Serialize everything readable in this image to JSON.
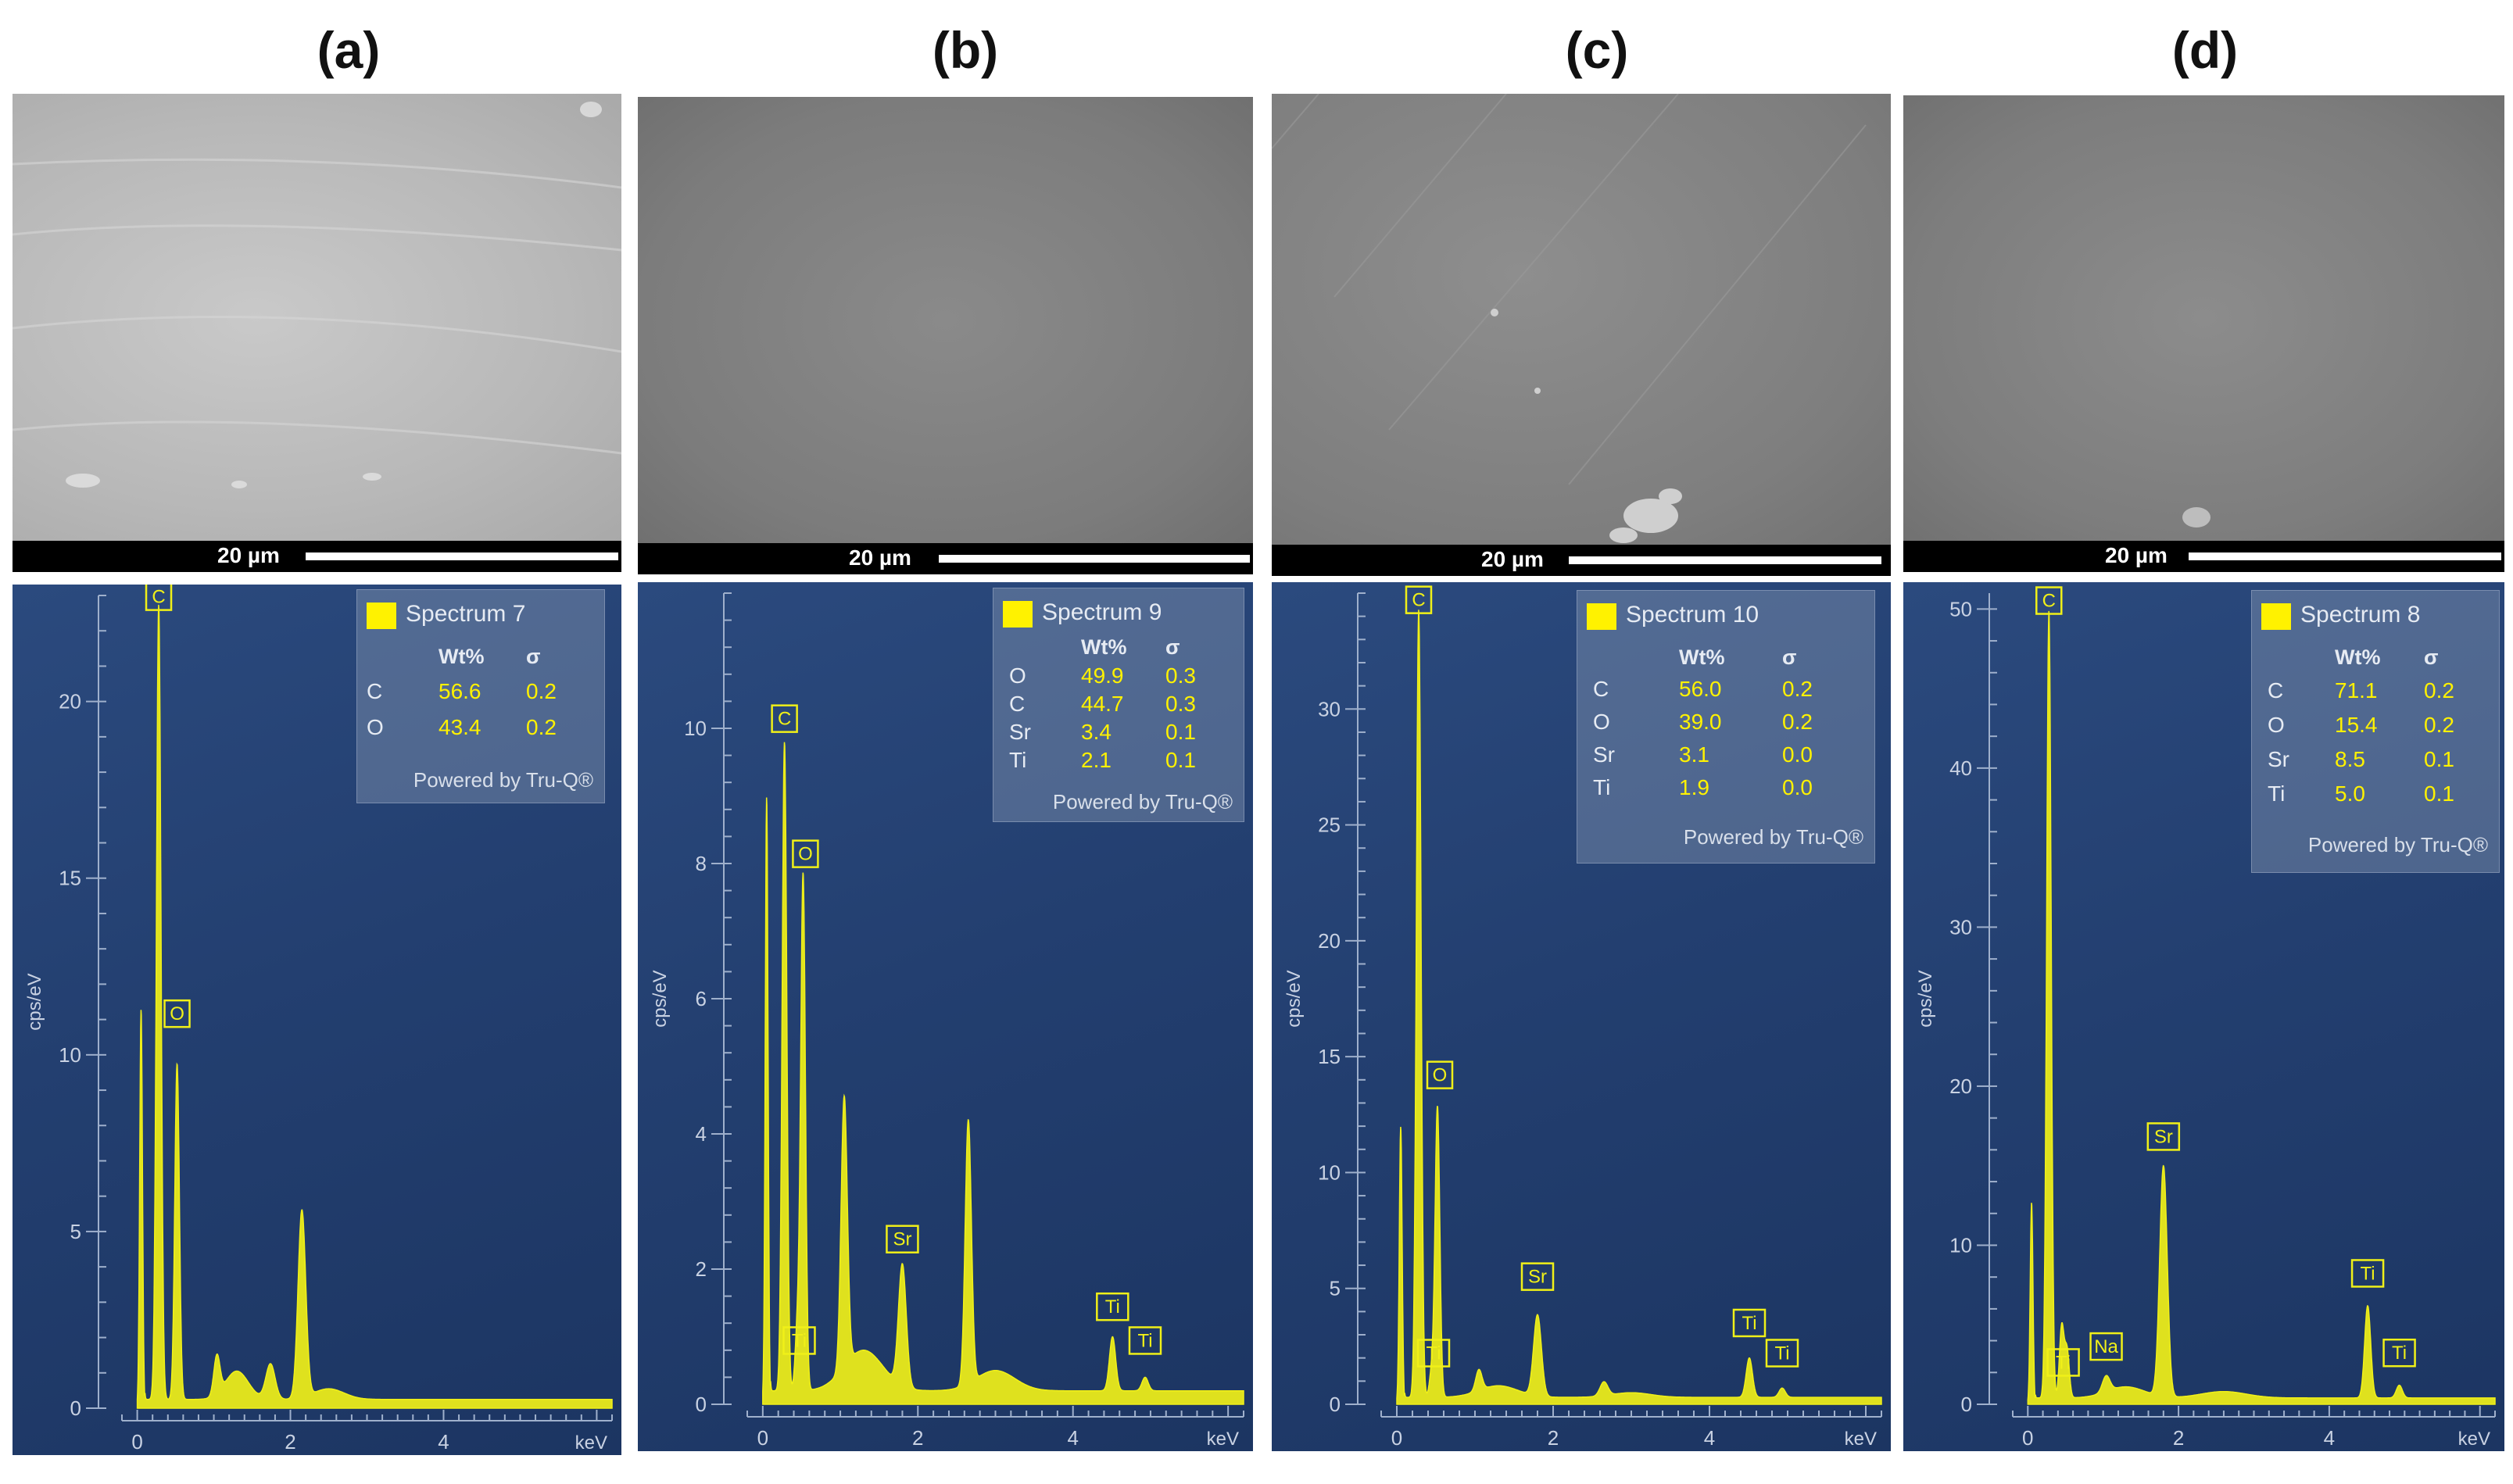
{
  "colors": {
    "spectrum": "#f0f018",
    "background": "#223d6e",
    "legend_swatch": "#fff200"
  },
  "panels": [
    {
      "letter": "(a)",
      "scale_bar": "20 µm",
      "legend": {
        "spectrum": "Spectrum 7",
        "col_wt": "Wt%",
        "col_sigma": "σ",
        "rows": [
          {
            "el": "C",
            "wt": "56.6",
            "sigma": "0.2"
          },
          {
            "el": "O",
            "wt": "43.4",
            "sigma": "0.2"
          }
        ],
        "powered": "Powered by Tru-Q®"
      }
    },
    {
      "letter": "(b)",
      "scale_bar": "20 µm",
      "legend": {
        "spectrum": "Spectrum 9",
        "col_wt": "Wt%",
        "col_sigma": "σ",
        "rows": [
          {
            "el": "O",
            "wt": "49.9",
            "sigma": "0.3"
          },
          {
            "el": "C",
            "wt": "44.7",
            "sigma": "0.3"
          },
          {
            "el": "Sr",
            "wt": "3.4",
            "sigma": "0.1"
          },
          {
            "el": "Ti",
            "wt": "2.1",
            "sigma": "0.1"
          }
        ],
        "powered": "Powered by Tru-Q®"
      }
    },
    {
      "letter": "(c)",
      "scale_bar": "20 µm",
      "legend": {
        "spectrum": "Spectrum 10",
        "col_wt": "Wt%",
        "col_sigma": "σ",
        "rows": [
          {
            "el": "C",
            "wt": "56.0",
            "sigma": "0.2"
          },
          {
            "el": "O",
            "wt": "39.0",
            "sigma": "0.2"
          },
          {
            "el": "Sr",
            "wt": "3.1",
            "sigma": "0.0"
          },
          {
            "el": "Ti",
            "wt": "1.9",
            "sigma": "0.0"
          }
        ],
        "powered": "Powered by Tru-Q®"
      }
    },
    {
      "letter": "(d)",
      "scale_bar": "20 µm",
      "legend": {
        "spectrum": "Spectrum 8",
        "col_wt": "Wt%",
        "col_sigma": "σ",
        "rows": [
          {
            "el": "C",
            "wt": "71.1",
            "sigma": "0.2"
          },
          {
            "el": "O",
            "wt": "15.4",
            "sigma": "0.2"
          },
          {
            "el": "Sr",
            "wt": "8.5",
            "sigma": "0.1"
          },
          {
            "el": "Ti",
            "wt": "5.0",
            "sigma": "0.1"
          }
        ],
        "powered": "Powered by Tru-Q®"
      }
    }
  ],
  "chart_data": [
    {
      "type": "area",
      "xlabel": "keV",
      "ylabel": "cps/eV",
      "xlim": [
        -0.2,
        6.2
      ],
      "ylim": [
        0,
        23
      ],
      "xticks": [
        "0",
        "2",
        "4"
      ],
      "xtick_values": [
        0,
        2,
        4
      ],
      "yticks": [
        "0",
        "5",
        "10",
        "15",
        "20"
      ],
      "ytick_values": [
        0,
        5,
        10,
        15,
        20
      ],
      "baseline": 0.25,
      "peaks": [
        {
          "x": 0.05,
          "y": 11.3,
          "w": 0.018
        },
        {
          "x": 0.28,
          "y": 22.5,
          "w": 0.03
        },
        {
          "x": 0.52,
          "y": 9.5,
          "w": 0.03
        },
        {
          "x": 1.04,
          "y": 1.1,
          "w": 0.04
        },
        {
          "x": 1.3,
          "y": 0.8,
          "w": 0.15
        },
        {
          "x": 1.74,
          "y": 1.0,
          "w": 0.06
        },
        {
          "x": 2.15,
          "y": 5.3,
          "w": 0.05
        },
        {
          "x": 2.5,
          "y": 0.3,
          "w": 0.2
        }
      ],
      "peak_labels": [
        {
          "label": "C",
          "x": 0.28,
          "y": 22.5
        },
        {
          "label": "O",
          "x": 0.52,
          "y": 10.7
        }
      ]
    },
    {
      "type": "area",
      "xlabel": "keV",
      "ylabel": "cps/eV",
      "xlim": [
        -0.2,
        6.2
      ],
      "ylim": [
        0,
        12
      ],
      "xticks": [
        "0",
        "2",
        "4"
      ],
      "xtick_values": [
        0,
        2,
        4
      ],
      "yticks": [
        "0",
        "2",
        "4",
        "6",
        "8",
        "10"
      ],
      "ytick_values": [
        0,
        2,
        4,
        6,
        8,
        10
      ],
      "baseline": 0.2,
      "peaks": [
        {
          "x": 0.05,
          "y": 9.0,
          "w": 0.018
        },
        {
          "x": 0.28,
          "y": 9.6,
          "w": 0.03
        },
        {
          "x": 0.45,
          "y": 1.0,
          "w": 0.03
        },
        {
          "x": 0.52,
          "y": 7.6,
          "w": 0.03
        },
        {
          "x": 1.05,
          "y": 4.0,
          "w": 0.04
        },
        {
          "x": 1.3,
          "y": 0.6,
          "w": 0.25
        },
        {
          "x": 1.8,
          "y": 1.8,
          "w": 0.05
        },
        {
          "x": 2.65,
          "y": 3.9,
          "w": 0.04
        },
        {
          "x": 3.0,
          "y": 0.3,
          "w": 0.25
        },
        {
          "x": 4.51,
          "y": 0.8,
          "w": 0.04
        },
        {
          "x": 4.93,
          "y": 0.2,
          "w": 0.04
        }
      ],
      "peak_labels": [
        {
          "label": "C",
          "x": 0.28,
          "y": 9.9
        },
        {
          "label": "O",
          "x": 0.55,
          "y": 7.9
        },
        {
          "label": "Ti",
          "x": 0.47,
          "y": 0.7
        },
        {
          "label": "Sr",
          "x": 1.8,
          "y": 2.2
        },
        {
          "label": "Ti",
          "x": 4.51,
          "y": 1.2
        },
        {
          "label": "Ti",
          "x": 4.93,
          "y": 0.7
        }
      ]
    },
    {
      "type": "area",
      "xlabel": "keV",
      "ylabel": "cps/eV",
      "xlim": [
        -0.2,
        6.2
      ],
      "ylim": [
        0,
        35
      ],
      "xticks": [
        "0",
        "2",
        "4"
      ],
      "xtick_values": [
        0,
        2,
        4
      ],
      "yticks": [
        "0",
        "5",
        "10",
        "15",
        "20",
        "25",
        "30"
      ],
      "ytick_values": [
        0,
        5,
        10,
        15,
        20,
        25,
        30
      ],
      "baseline": 0.3,
      "peaks": [
        {
          "x": 0.05,
          "y": 12.0,
          "w": 0.018
        },
        {
          "x": 0.28,
          "y": 34.0,
          "w": 0.03
        },
        {
          "x": 0.45,
          "y": 1.2,
          "w": 0.03
        },
        {
          "x": 0.52,
          "y": 12.5,
          "w": 0.03
        },
        {
          "x": 1.05,
          "y": 0.9,
          "w": 0.04
        },
        {
          "x": 1.3,
          "y": 0.5,
          "w": 0.25
        },
        {
          "x": 1.8,
          "y": 3.5,
          "w": 0.05
        },
        {
          "x": 2.65,
          "y": 0.6,
          "w": 0.05
        },
        {
          "x": 3.0,
          "y": 0.2,
          "w": 0.25
        },
        {
          "x": 4.51,
          "y": 1.7,
          "w": 0.04
        },
        {
          "x": 4.93,
          "y": 0.4,
          "w": 0.04
        }
      ],
      "peak_labels": [
        {
          "label": "C",
          "x": 0.28,
          "y": 34.0
        },
        {
          "label": "O",
          "x": 0.55,
          "y": 13.5
        },
        {
          "label": "Ti",
          "x": 0.47,
          "y": 1.5
        },
        {
          "label": "Sr",
          "x": 1.8,
          "y": 4.8
        },
        {
          "label": "Ti",
          "x": 4.51,
          "y": 2.8
        },
        {
          "label": "Ti",
          "x": 4.93,
          "y": 1.5
        }
      ]
    },
    {
      "type": "area",
      "xlabel": "keV",
      "ylabel": "cps/eV",
      "xlim": [
        -0.2,
        6.2
      ],
      "ylim": [
        0,
        51
      ],
      "xticks": [
        "0",
        "2",
        "4"
      ],
      "xtick_values": [
        0,
        2,
        4
      ],
      "yticks": [
        "0",
        "10",
        "20",
        "30",
        "40",
        "50"
      ],
      "ytick_values": [
        0,
        10,
        20,
        30,
        40,
        50
      ],
      "baseline": 0.4,
      "peaks": [
        {
          "x": 0.05,
          "y": 12.7,
          "w": 0.018
        },
        {
          "x": 0.28,
          "y": 49.5,
          "w": 0.03
        },
        {
          "x": 0.45,
          "y": 4.5,
          "w": 0.03
        },
        {
          "x": 0.52,
          "y": 3.0,
          "w": 0.03
        },
        {
          "x": 1.04,
          "y": 1.0,
          "w": 0.05
        },
        {
          "x": 1.3,
          "y": 0.7,
          "w": 0.25
        },
        {
          "x": 1.8,
          "y": 14.5,
          "w": 0.05
        },
        {
          "x": 2.6,
          "y": 0.4,
          "w": 0.3
        },
        {
          "x": 4.51,
          "y": 5.8,
          "w": 0.04
        },
        {
          "x": 4.93,
          "y": 0.8,
          "w": 0.04
        }
      ],
      "peak_labels": [
        {
          "label": "C",
          "x": 0.28,
          "y": 49.5
        },
        {
          "label": "Ti",
          "x": 0.47,
          "y": 1.6
        },
        {
          "label": "Na",
          "x": 1.04,
          "y": 2.6
        },
        {
          "label": "Sr",
          "x": 1.8,
          "y": 15.8
        },
        {
          "label": "Ti",
          "x": 4.51,
          "y": 7.2
        },
        {
          "label": "Ti",
          "x": 4.93,
          "y": 2.2
        }
      ]
    }
  ]
}
